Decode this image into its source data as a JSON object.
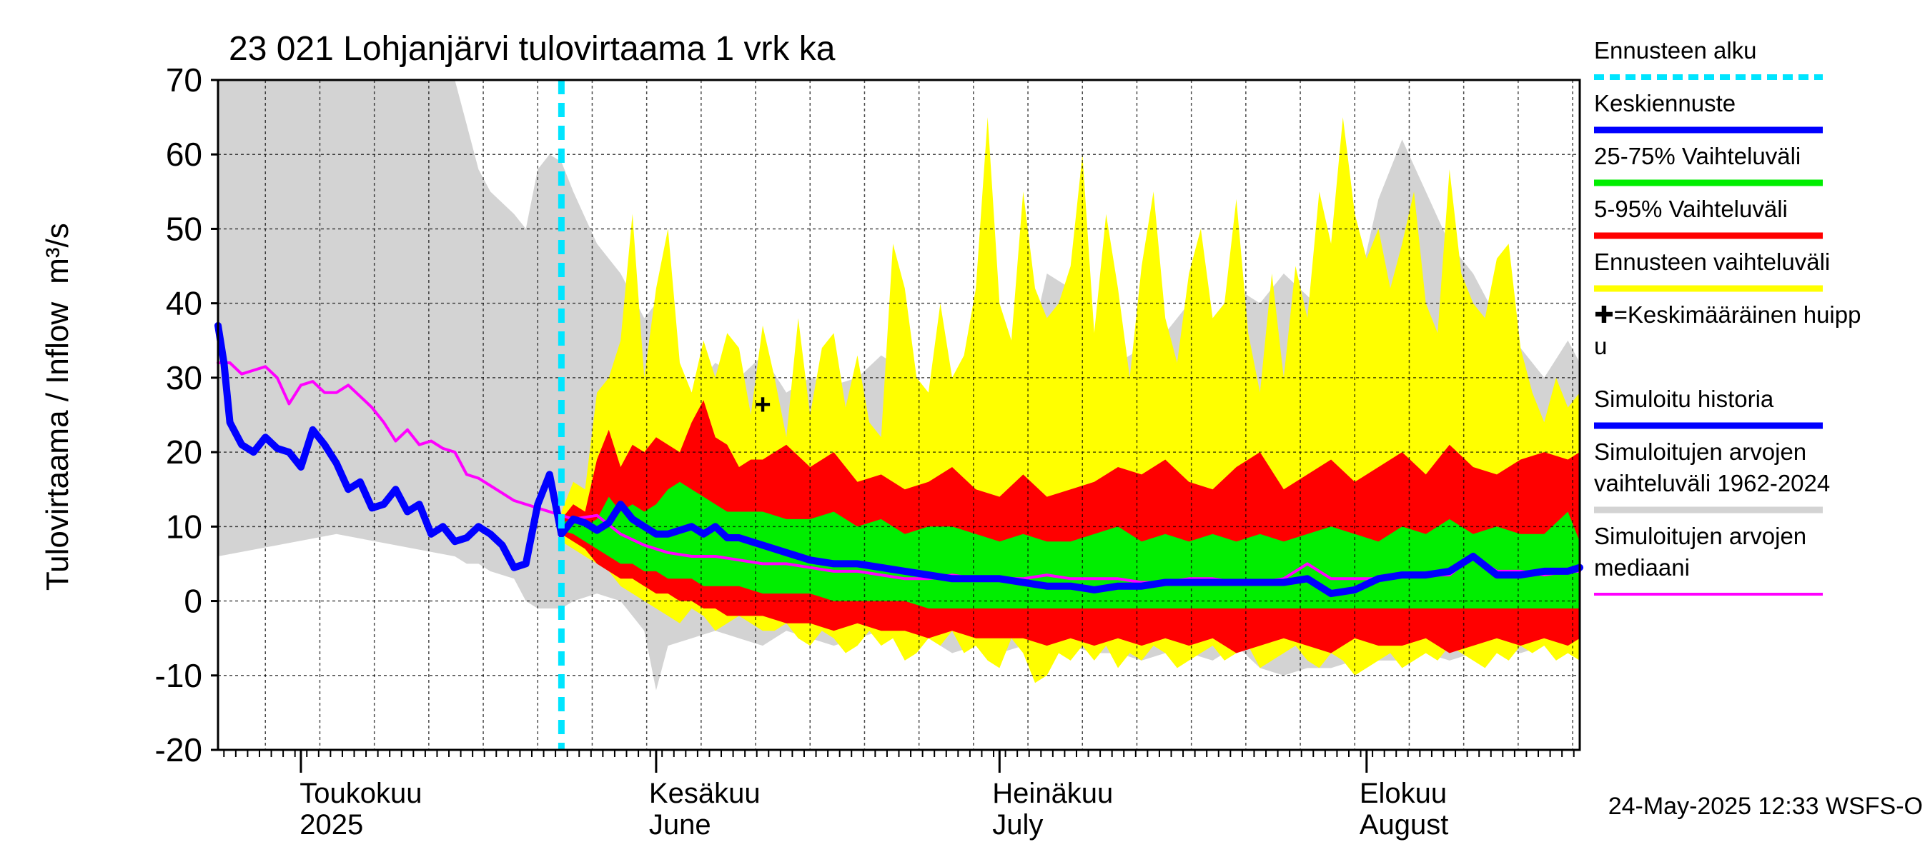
{
  "chart_data": {
    "type": "area",
    "title": "23 021 Lohjanjärvi tulovirtaama 1 vrk ka",
    "ylabel": "Tulovirtaama / Inflow",
    "ylabel_unit": "m³/s",
    "ylim": [
      -20,
      70
    ],
    "yticks": [
      "70",
      "60",
      "50",
      "40",
      "30",
      "20",
      "10",
      "0",
      "-10",
      "-20"
    ],
    "x_range_days": [
      0,
      115
    ],
    "forecast_start_day": 29,
    "month_labels": [
      {
        "day": 7.5,
        "line1": "Toukokuu",
        "line2": "2025"
      },
      {
        "day": 37,
        "line1": "Kesäkuu",
        "line2": "June"
      },
      {
        "day": 66,
        "line1": "Heinäkuu",
        "line2": "July"
      },
      {
        "day": 97,
        "line1": "Elokuu",
        "line2": "August"
      }
    ],
    "month_boundaries": [
      7,
      37,
      66,
      97
    ],
    "mean_peak": {
      "day": 46,
      "value": 26.5,
      "symbol": "+"
    },
    "historical_range": {
      "name": "Simuloitujen arvojen vaihteluväli 1962-2024",
      "color": "#d3d3d3",
      "x": [
        0,
        10,
        20,
        21,
        22,
        23,
        25,
        26,
        27,
        28,
        29,
        30,
        32,
        34,
        36,
        37,
        38,
        40,
        42,
        44,
        46,
        48,
        50,
        52,
        54,
        56,
        58,
        60,
        62,
        64,
        66,
        68,
        70,
        72,
        74,
        76,
        78,
        80,
        82,
        84,
        86,
        88,
        90,
        92,
        94,
        96,
        98,
        100,
        102,
        104,
        106,
        108,
        110,
        112,
        114,
        115
      ],
      "upper": [
        70,
        70,
        70,
        64,
        58,
        55,
        52,
        50,
        58,
        60,
        59,
        55,
        48,
        44,
        38,
        40,
        34,
        28,
        32,
        30,
        33,
        28,
        30,
        29,
        30,
        33,
        31,
        28,
        30,
        31,
        36,
        30,
        44,
        42,
        36,
        32,
        34,
        36,
        40,
        38,
        42,
        40,
        44,
        41,
        38,
        40,
        54,
        62,
        55,
        48,
        44,
        38,
        34,
        30,
        35,
        32
      ],
      "lower": [
        6,
        9,
        6,
        5,
        5,
        4,
        3,
        0,
        -1,
        -1,
        -1,
        0,
        1,
        0,
        -4,
        -12,
        -6,
        -5,
        -4,
        -5,
        -6,
        -4,
        -5,
        -6,
        -5,
        -4,
        -6,
        -5,
        -7,
        -6,
        -7,
        -6,
        -8,
        -6,
        -7,
        -7,
        -8,
        -7,
        -7,
        -8,
        -6,
        -9,
        -10,
        -9,
        -9,
        -8,
        -8,
        -8,
        -7,
        -8,
        -7,
        -6,
        -7,
        -6,
        -5,
        -5
      ]
    },
    "forecast_range": {
      "name": "Ennusteen vaihteluväli",
      "color": "#ffff00",
      "x": [
        29,
        30,
        31,
        32,
        33,
        34,
        35,
        36,
        37,
        38,
        39,
        40,
        41,
        42,
        43,
        44,
        45,
        46,
        47,
        48,
        49,
        50,
        51,
        52,
        53,
        54,
        55,
        56,
        57,
        58,
        59,
        60,
        61,
        62,
        63,
        64,
        65,
        66,
        67,
        68,
        69,
        70,
        71,
        72,
        73,
        74,
        75,
        76,
        77,
        78,
        79,
        80,
        81,
        82,
        83,
        84,
        85,
        86,
        87,
        88,
        89,
        90,
        91,
        92,
        93,
        94,
        95,
        96,
        97,
        98,
        99,
        100,
        101,
        102,
        103,
        104,
        105,
        106,
        107,
        108,
        109,
        110,
        111,
        112,
        113,
        114,
        115
      ],
      "upper": [
        12,
        16,
        15,
        28,
        30,
        35,
        52,
        30,
        42,
        50,
        32,
        28,
        35,
        30,
        36,
        34,
        25,
        37,
        30,
        22,
        38,
        25,
        34,
        36,
        26,
        33,
        24,
        22,
        48,
        42,
        30,
        28,
        40,
        30,
        33,
        42,
        65,
        40,
        35,
        55,
        42,
        38,
        40,
        45,
        60,
        36,
        52,
        42,
        30,
        45,
        55,
        38,
        32,
        44,
        50,
        38,
        40,
        54,
        36,
        28,
        44,
        30,
        45,
        38,
        55,
        48,
        65,
        52,
        46,
        50,
        42,
        48,
        55,
        40,
        36,
        58,
        44,
        40,
        38,
        46,
        48,
        34,
        28,
        24,
        30,
        26,
        28
      ],
      "lower": [
        8,
        7,
        6,
        5,
        4,
        2,
        1,
        0,
        -1,
        -2,
        -3,
        -1,
        -2,
        -4,
        -3,
        -2,
        -3,
        -4,
        -4,
        -3,
        -5,
        -6,
        -4,
        -5,
        -7,
        -6,
        -4,
        -6,
        -5,
        -8,
        -7,
        -5,
        -6,
        -4,
        -7,
        -6,
        -8,
        -9,
        -5,
        -7,
        -11,
        -10,
        -7,
        -8,
        -6,
        -8,
        -6,
        -9,
        -7,
        -8,
        -6,
        -7,
        -9,
        -8,
        -7,
        -6,
        -8,
        -7,
        -6,
        -9,
        -8,
        -7,
        -6,
        -8,
        -9,
        -7,
        -8,
        -10,
        -9,
        -8,
        -7,
        -9,
        -8,
        -7,
        -8,
        -6,
        -7,
        -8,
        -9,
        -7,
        -8,
        -6,
        -7,
        -6,
        -8,
        -7,
        -8
      ]
    },
    "p5_95": {
      "name": "5-95% Vaihteluväli",
      "color": "#ff0000",
      "x": [
        29,
        30,
        31,
        32,
        33,
        34,
        35,
        36,
        37,
        38,
        39,
        40,
        41,
        42,
        43,
        44,
        45,
        46,
        48,
        50,
        52,
        54,
        56,
        58,
        60,
        62,
        64,
        66,
        68,
        70,
        72,
        74,
        76,
        78,
        80,
        82,
        84,
        86,
        88,
        90,
        92,
        94,
        96,
        98,
        100,
        102,
        104,
        106,
        108,
        110,
        112,
        114,
        115
      ],
      "upper": [
        11,
        13,
        12,
        19,
        23,
        18,
        21,
        20,
        22,
        21,
        20,
        24,
        27,
        22,
        21,
        18,
        19,
        19,
        21,
        18,
        20,
        16,
        17,
        15,
        16,
        18,
        15,
        14,
        17,
        14,
        15,
        16,
        18,
        17,
        19,
        16,
        15,
        18,
        20,
        15,
        17,
        19,
        16,
        18,
        20,
        17,
        21,
        18,
        17,
        19,
        20,
        19,
        20
      ],
      "lower": [
        9,
        8,
        7,
        5,
        4,
        3,
        3,
        2,
        1,
        1,
        0,
        0,
        -1,
        -1,
        -2,
        -2,
        -2,
        -2,
        -3,
        -3,
        -4,
        -3,
        -4,
        -4,
        -5,
        -4,
        -5,
        -5,
        -5,
        -6,
        -5,
        -6,
        -5,
        -6,
        -5,
        -6,
        -5,
        -7,
        -6,
        -5,
        -6,
        -7,
        -5,
        -6,
        -6,
        -5,
        -7,
        -6,
        -5,
        -6,
        -5,
        -6,
        -5
      ]
    },
    "p25_75": {
      "name": "25-75% Vaihteluväli",
      "color": "#00ee00",
      "x": [
        29,
        30,
        31,
        32,
        33,
        34,
        35,
        36,
        37,
        38,
        39,
        40,
        41,
        42,
        43,
        44,
        46,
        48,
        50,
        52,
        54,
        56,
        58,
        60,
        62,
        64,
        66,
        68,
        70,
        72,
        74,
        76,
        78,
        80,
        82,
        84,
        86,
        88,
        90,
        92,
        94,
        96,
        98,
        100,
        102,
        104,
        106,
        108,
        110,
        112,
        114,
        115
      ],
      "upper": [
        10.5,
        11,
        10,
        11,
        14,
        12,
        13,
        12,
        13,
        15,
        16,
        15,
        14,
        13,
        12,
        12,
        12,
        11,
        11,
        12,
        10,
        11,
        9,
        10,
        10,
        9,
        8,
        9,
        8,
        8,
        9,
        10,
        8,
        9,
        8,
        9,
        8,
        9,
        8,
        9,
        10,
        9,
        8,
        10,
        9,
        11,
        9,
        10,
        9,
        9,
        12,
        8
      ],
      "lower": [
        9.5,
        9,
        8,
        7,
        6,
        5,
        5,
        4,
        4,
        3,
        3,
        3,
        2,
        2,
        2,
        2,
        1,
        1,
        1,
        0,
        0,
        0,
        0,
        -1,
        -1,
        -1,
        -1,
        -1,
        -1,
        -1,
        -1,
        -1,
        -1,
        -1,
        -1,
        -1,
        -1,
        -1,
        -1,
        -1,
        -1,
        -1,
        -1,
        -1,
        -1,
        -1,
        -1,
        -1,
        -1,
        -1,
        -1,
        -1
      ]
    },
    "history": {
      "name": "Simuloitu historia",
      "color": "#0000ff",
      "x": [
        0,
        0.5,
        1,
        2,
        3,
        4,
        5,
        6,
        7,
        8,
        9,
        10,
        11,
        12,
        13,
        14,
        15,
        16,
        17,
        18,
        19,
        20,
        21,
        22,
        23,
        24,
        25,
        26,
        27,
        28,
        29
      ],
      "values": [
        37,
        32,
        24,
        21,
        20,
        22,
        20.5,
        20,
        18,
        23,
        21,
        18.5,
        15,
        16,
        12.5,
        13,
        15,
        12,
        13,
        9,
        10,
        8,
        8.5,
        10,
        9,
        7.5,
        4.5,
        5,
        13,
        17,
        9
      ]
    },
    "forecast_median": {
      "name": "Keskiennuste",
      "color": "#0000ff",
      "x": [
        29,
        30,
        31,
        32,
        33,
        34,
        35,
        36,
        37,
        38,
        39,
        40,
        41,
        42,
        43,
        44,
        46,
        48,
        50,
        52,
        54,
        56,
        58,
        60,
        62,
        64,
        66,
        68,
        70,
        72,
        74,
        76,
        78,
        80,
        82,
        84,
        86,
        88,
        90,
        92,
        94,
        96,
        98,
        100,
        102,
        104,
        106,
        108,
        110,
        112,
        114,
        115
      ],
      "values": [
        9,
        11,
        10.5,
        9.5,
        10.5,
        13,
        11,
        10,
        9,
        9,
        9.5,
        10,
        9,
        10,
        8.5,
        8.5,
        7.5,
        6.5,
        5.5,
        5,
        5,
        4.5,
        4,
        3.5,
        3,
        3,
        3,
        2.5,
        2,
        2,
        1.5,
        2,
        2,
        2.5,
        2.5,
        2.5,
        2.5,
        2.5,
        2.5,
        3,
        1,
        1.5,
        3,
        3.5,
        3.5,
        4,
        6,
        3.5,
        3.5,
        4,
        4,
        4.5
      ]
    },
    "sim_median": {
      "name": "Simuloitujen arvojen mediaani",
      "color": "#ff00ff",
      "x": [
        0,
        1,
        2,
        3,
        4,
        5,
        6,
        7,
        8,
        9,
        10,
        11,
        12,
        13,
        14,
        15,
        16,
        17,
        18,
        19,
        20,
        21,
        22,
        23,
        24,
        25,
        26,
        27,
        28,
        29,
        30,
        32,
        34,
        36,
        38,
        40,
        42,
        44,
        46,
        48,
        50,
        52,
        54,
        56,
        58,
        60,
        62,
        64,
        66,
        68,
        70,
        72,
        74,
        76,
        78,
        80,
        82,
        84,
        86,
        88,
        90,
        92,
        94,
        96,
        98,
        100,
        102,
        104,
        106,
        108,
        110,
        112,
        114,
        115
      ],
      "values": [
        32,
        32,
        30.5,
        31,
        31.5,
        30,
        26.5,
        29,
        29.5,
        28,
        28,
        29,
        27.5,
        26,
        24,
        21.5,
        23,
        21,
        21.5,
        20.5,
        20,
        17,
        16.5,
        15.5,
        14.5,
        13.5,
        13,
        12.5,
        12,
        11.5,
        11,
        11.5,
        9,
        7.5,
        6.5,
        6,
        6,
        5.5,
        5,
        5,
        4.5,
        4,
        4,
        3.5,
        3,
        3,
        3.5,
        3,
        3,
        3,
        3.5,
        3,
        3,
        3,
        2.5,
        2.5,
        3,
        3,
        2.5,
        2.5,
        3,
        5,
        3,
        3,
        3,
        3.5,
        3.5,
        3.5,
        6,
        4,
        4,
        3.5,
        4,
        4
      ]
    },
    "legend": [
      {
        "label": "Ennusteen alku",
        "color": "#00e5ff",
        "style": "dashed"
      },
      {
        "label": "Keskiennuste",
        "color": "#0000ff",
        "style": "solid"
      },
      {
        "label": "25-75% Vaihteluväli",
        "color": "#00ee00",
        "style": "solid"
      },
      {
        "label": "5-95% Vaihteluväli",
        "color": "#ff0000",
        "style": "solid"
      },
      {
        "label": "Ennusteen vaihteluväli",
        "color": "#ffff00",
        "style": "solid"
      },
      {
        "label": "✚=Keskimääräinen huippu",
        "color": "",
        "style": "none"
      },
      {
        "label": "Simuloitu historia",
        "color": "#0000ff",
        "style": "solid"
      },
      {
        "label": "Simuloitujen arvojen vaihteluväli 1962-2024",
        "color": "#d3d3d3",
        "style": "solid"
      },
      {
        "label": "Simuloitujen arvojen mediaani",
        "color": "#ff00ff",
        "style": "solid"
      }
    ],
    "legend_lines": [
      [
        "Ennusteen alku"
      ],
      [
        "Keskiennuste"
      ],
      [
        "25-75% Vaihteluväli"
      ],
      [
        "5-95% Vaihteluväli"
      ],
      [
        "Ennusteen vaihteluväli"
      ],
      [
        "✚=Keskimääräinen huipp",
        "u"
      ],
      [
        "Simuloitu historia"
      ],
      [
        "Simuloitujen arvojen",
        "vaihteluväli 1962-2024"
      ],
      [
        "Simuloitujen arvojen",
        "mediaani"
      ]
    ],
    "footer": "24-May-2025 12:33 WSFS-O"
  }
}
